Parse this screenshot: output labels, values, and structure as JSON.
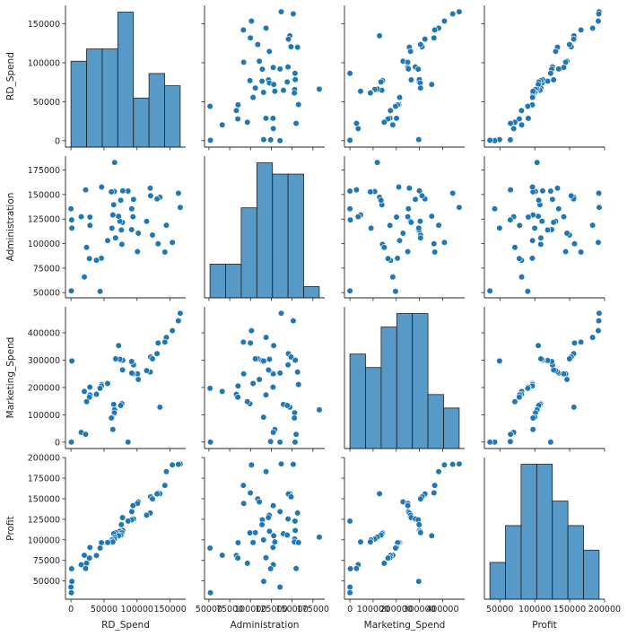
{
  "chart_data": {
    "type": "pairplot",
    "color": "#1f77b4",
    "variables": [
      {
        "name": "RD_Spend",
        "lim": [
          -8300,
          173600
        ],
        "ticks": [
          0,
          50000,
          100000,
          150000
        ],
        "hist": {
          "bins": [
            0,
            23621.3,
            47242.6,
            70863.9,
            94485.3,
            118106.6,
            141727.9,
            165349.2
          ],
          "counts": [
            7,
            8,
            8,
            11,
            4,
            6,
            5
          ],
          "ylim": [
            0,
            11.55
          ]
        }
      },
      {
        "name": "Administration",
        "lim": [
          44700,
          189200
        ],
        "ticks": [
          50000,
          75000,
          100000,
          125000,
          150000,
          175000
        ],
        "hist": {
          "bins": [
            51283.1,
            70049.2,
            88815.3,
            107581.3,
            126347.4,
            145113.5,
            163879.5,
            182645.6
          ],
          "counts": [
            3,
            3,
            8,
            12,
            11,
            11,
            1
          ],
          "ylim": [
            0,
            12.6
          ]
        }
      },
      {
        "name": "Marketing_Spend",
        "lim": [
          -23600,
          495400
        ],
        "ticks": [
          0,
          100000,
          200000,
          300000,
          400000
        ],
        "hist": {
          "bins": [
            0,
            67397.7,
            134795.5,
            202193.2,
            269590.9,
            336988.6,
            404386.4,
            471784.1
          ],
          "counts": [
            7,
            6,
            9,
            10,
            10,
            4,
            3
          ],
          "ylim": [
            0,
            10.5
          ]
        }
      },
      {
        "name": "Profit",
        "lim": [
          27800,
          200100
        ],
        "ticks": [
          50000,
          75000,
          100000,
          125000,
          150000,
          175000,
          200000
        ],
        "xticks": [
          50000,
          100000,
          150000,
          200000
        ],
        "hist": {
          "bins": [
            35673.4,
            58043.2,
            80413.0,
            102782.7,
            125152.5,
            147522.3,
            169892.0,
            192261.8
          ],
          "counts": [
            3,
            6,
            11,
            11,
            8,
            6,
            4
          ],
          "ylim": [
            0,
            11.55
          ]
        }
      }
    ],
    "rows": [
      [
        165349.2,
        136897.8,
        471784.1,
        192261.83
      ],
      [
        162597.7,
        151377.59,
        443898.53,
        191792.06
      ],
      [
        153441.51,
        101145.55,
        407934.54,
        191050.39
      ],
      [
        144372.41,
        118671.85,
        383199.62,
        182901.99
      ],
      [
        142107.34,
        91391.77,
        366168.42,
        166187.94
      ],
      [
        131876.9,
        99814.71,
        362861.36,
        156991.12
      ],
      [
        134615.46,
        147198.87,
        127716.82,
        156122.51
      ],
      [
        130298.13,
        145530.06,
        323876.68,
        155752.6
      ],
      [
        120542.52,
        148718.95,
        311613.29,
        152211.77
      ],
      [
        123334.88,
        108679.17,
        304981.62,
        149759.96
      ],
      [
        101913.08,
        110594.11,
        229160.95,
        146121.95
      ],
      [
        100671.96,
        91790.61,
        249744.55,
        144259.4
      ],
      [
        93863.75,
        127320.38,
        249839.44,
        141585.52
      ],
      [
        91992.39,
        135495.07,
        252664.93,
        134307.35
      ],
      [
        119943.24,
        156547.42,
        256512.92,
        132602.65
      ],
      [
        114523.61,
        122616.84,
        261776.23,
        129917.04
      ],
      [
        78013.11,
        121597.55,
        264346.06,
        126992.93
      ],
      [
        94657.16,
        145077.58,
        282574.31,
        125370.37
      ],
      [
        91749.16,
        114175.79,
        294919.57,
        124266.9
      ],
      [
        86419.7,
        153514.11,
        0,
        122776.86
      ],
      [
        76253.86,
        113867.3,
        298664.47,
        118474.03
      ],
      [
        78389.47,
        153773.43,
        299737.29,
        111313.02
      ],
      [
        73994.56,
        122782.75,
        303319.26,
        110352.25
      ],
      [
        67532.53,
        105751.03,
        304768.73,
        108733.99
      ],
      [
        77044.01,
        99281.34,
        140574.81,
        108552.04
      ],
      [
        64664.71,
        139553.16,
        137962.62,
        107404.34
      ],
      [
        75328.87,
        144135.98,
        134050.07,
        105733.54
      ],
      [
        72107.6,
        127864.55,
        353183.81,
        105008.31
      ],
      [
        66051.52,
        182645.56,
        118148.2,
        103282.38
      ],
      [
        65605.48,
        153032.06,
        107138.38,
        101004.64
      ],
      [
        61994.48,
        115641.28,
        91131.24,
        99937.59
      ],
      [
        61136.38,
        152701.92,
        88218.23,
        97483.56
      ],
      [
        63408.86,
        129219.61,
        46085.25,
        97427.84
      ],
      [
        55493.95,
        103057.49,
        214634.81,
        96778.92
      ],
      [
        46426.07,
        157693.92,
        210797.67,
        96712.8
      ],
      [
        46014.02,
        85047.44,
        205517.64,
        96479.51
      ],
      [
        28663.76,
        127056.21,
        201126.82,
        90708.19
      ],
      [
        44069.95,
        51283.14,
        197029.42,
        89949.14
      ],
      [
        20229.59,
        65947.93,
        185265.1,
        81229.06
      ],
      [
        38558.51,
        82982.09,
        174999.3,
        81005.76
      ],
      [
        28754.33,
        118546.05,
        172795.67,
        78239.91
      ],
      [
        27892.92,
        84710.77,
        164470.71,
        77798.83
      ],
      [
        23640.93,
        96189.63,
        148001.11,
        71498.49
      ],
      [
        15505.73,
        127382.3,
        35534.17,
        69758.98
      ],
      [
        22177.74,
        154806.14,
        28334.72,
        65200.33
      ],
      [
        1000.23,
        124153.04,
        1903.93,
        64926.08
      ],
      [
        1315.46,
        115816.21,
        297114.46,
        49490.75
      ],
      [
        0,
        135426.92,
        0,
        42559.73
      ],
      [
        542.05,
        51743.15,
        0,
        35673.41
      ]
    ]
  }
}
